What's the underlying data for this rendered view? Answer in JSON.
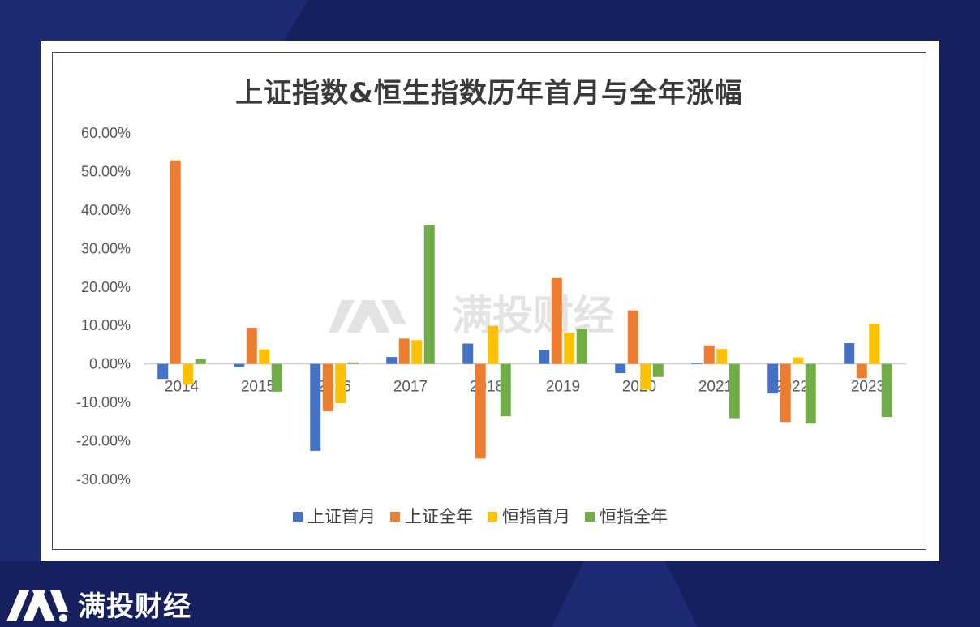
{
  "brand": {
    "name": "满投财经",
    "logo_icon": "mt-logo-icon"
  },
  "watermark": {
    "text": "满投财经"
  },
  "colors": {
    "background": "#16205e",
    "上证首月": "#4472c4",
    "上证全年": "#ed7d31",
    "恒指首月": "#ffc000",
    "恒指全年": "#70ad47"
  },
  "chart_data": {
    "type": "bar",
    "title": "上证指数&恒生指数历年首月与全年涨幅",
    "categories": [
      "2014",
      "2015",
      "2016",
      "2017",
      "2018",
      "2019",
      "2020",
      "2021",
      "2022",
      "2023"
    ],
    "series": [
      {
        "name": "上证首月",
        "values": [
          -3.9,
          -0.8,
          -22.6,
          1.8,
          5.3,
          3.6,
          -2.4,
          0.3,
          -7.7,
          5.4
        ]
      },
      {
        "name": "上证全年",
        "values": [
          52.9,
          9.4,
          -12.3,
          6.6,
          -24.6,
          22.3,
          13.9,
          4.8,
          -15.1,
          -3.7
        ]
      },
      {
        "name": "恒指首月",
        "values": [
          -5.4,
          3.8,
          -10.2,
          6.2,
          9.9,
          8.1,
          -6.7,
          3.9,
          1.7,
          10.4
        ]
      },
      {
        "name": "恒指全年",
        "values": [
          1.3,
          -7.2,
          0.4,
          36.0,
          -13.6,
          9.1,
          -3.4,
          -14.1,
          -15.5,
          -13.8
        ]
      }
    ],
    "ylim": [
      -30,
      60
    ],
    "yticks": [
      "60.00%",
      "50.00%",
      "40.00%",
      "30.00%",
      "20.00%",
      "10.00%",
      "0.00%",
      "-10.00%",
      "-20.00%",
      "-30.00%"
    ],
    "ytick_values": [
      60,
      50,
      40,
      30,
      20,
      10,
      0,
      -10,
      -20,
      -30
    ],
    "xlabel": "",
    "ylabel": "",
    "grid": false,
    "legend": "bottom"
  }
}
